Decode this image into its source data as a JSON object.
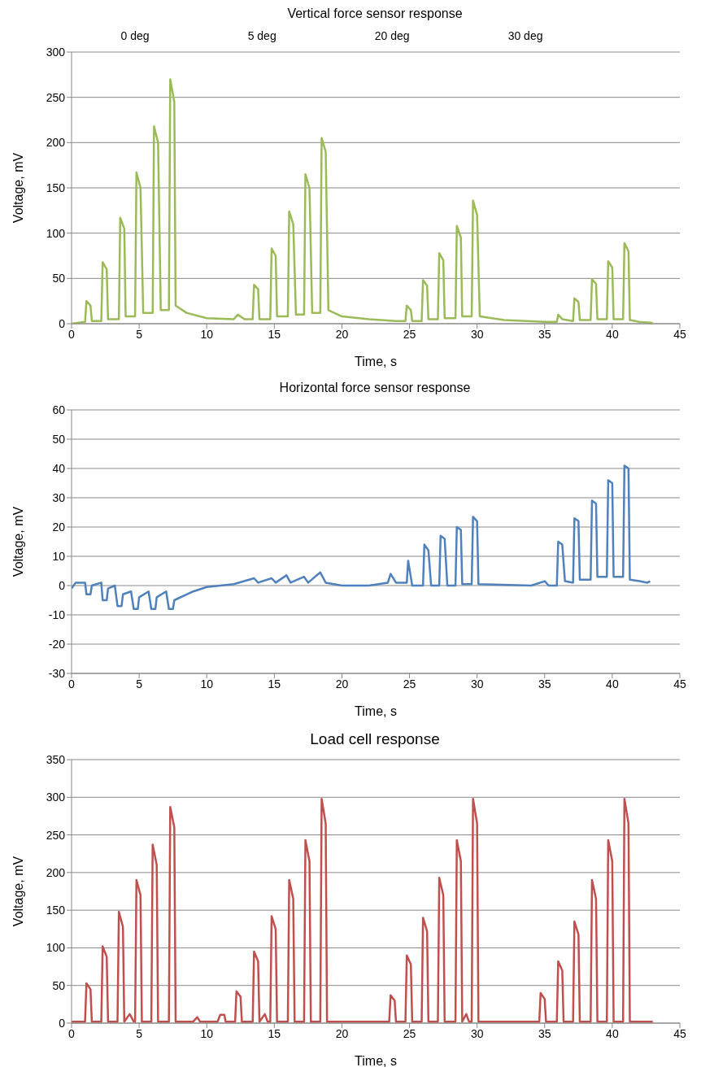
{
  "chart_data": [
    {
      "type": "line",
      "title": "Vertical force sensor response",
      "xlabel": "Time, s",
      "ylabel": "Voltage, mV",
      "xlim": [
        0,
        45
      ],
      "xticks": [
        0,
        5,
        10,
        15,
        20,
        25,
        30,
        35,
        40,
        45
      ],
      "ylim": [
        0,
        300
      ],
      "yticks": [
        0,
        50,
        100,
        150,
        200,
        250,
        300
      ],
      "grid": "y",
      "marker": "none",
      "line_style": "solid",
      "annotations": [
        "0 deg",
        "5 deg",
        "20 deg",
        "30 deg"
      ],
      "series": [
        {
          "color": "#9bbb59",
          "x": [
            0,
            1.0,
            1.1,
            1.4,
            1.5,
            2.2,
            2.3,
            2.6,
            2.7,
            3.5,
            3.6,
            3.9,
            4.0,
            4.7,
            4.8,
            5.1,
            5.3,
            6.0,
            6.1,
            6.4,
            6.6,
            7.2,
            7.3,
            7.6,
            7.7,
            8.5,
            10,
            12,
            12.3,
            12.5,
            12.8,
            13.4,
            13.5,
            13.8,
            13.9,
            14.7,
            14.8,
            15.1,
            15.2,
            16.0,
            16.1,
            16.4,
            16.6,
            17.2,
            17.3,
            17.6,
            17.8,
            18.4,
            18.5,
            18.8,
            19.0,
            20,
            22,
            24,
            24.7,
            24.8,
            25.1,
            25.2,
            25.9,
            26.0,
            26.3,
            26.4,
            27.1,
            27.2,
            27.5,
            27.6,
            28.4,
            28.5,
            28.8,
            28.9,
            29.6,
            29.7,
            30.0,
            30.2,
            32,
            35,
            35.9,
            36.0,
            36.3,
            37.1,
            37.2,
            37.5,
            37.6,
            38.4,
            38.5,
            38.8,
            38.9,
            39.6,
            39.7,
            40.0,
            40.1,
            40.8,
            40.9,
            41.2,
            41.3,
            42,
            43
          ],
          "values": [
            0,
            2,
            25,
            20,
            3,
            3,
            68,
            60,
            5,
            5,
            117,
            105,
            8,
            8,
            167,
            150,
            12,
            12,
            218,
            200,
            15,
            15,
            270,
            245,
            20,
            12,
            6,
            5,
            10,
            8,
            5,
            5,
            43,
            38,
            5,
            5,
            83,
            75,
            8,
            8,
            124,
            110,
            10,
            10,
            165,
            150,
            12,
            12,
            205,
            190,
            15,
            8,
            5,
            3,
            3,
            20,
            15,
            3,
            3,
            48,
            42,
            5,
            5,
            78,
            70,
            6,
            6,
            108,
            95,
            8,
            8,
            136,
            120,
            8,
            4,
            2,
            2,
            10,
            5,
            3,
            28,
            24,
            4,
            4,
            49,
            44,
            5,
            5,
            69,
            62,
            5,
            5,
            89,
            80,
            4,
            2,
            1
          ]
        }
      ]
    },
    {
      "type": "line",
      "title": "Horizontal force sensor response",
      "xlabel": "Time, s",
      "ylabel": "Voltage, mV",
      "xlim": [
        0,
        45
      ],
      "xticks": [
        0,
        5,
        10,
        15,
        20,
        25,
        30,
        35,
        40,
        45
      ],
      "ylim": [
        -30,
        60
      ],
      "yticks": [
        -30,
        -20,
        -10,
        0,
        10,
        20,
        30,
        40,
        50,
        60
      ],
      "grid": "y",
      "marker": "none",
      "line_style": "solid",
      "series": [
        {
          "color": "#4f81bd",
          "x": [
            0,
            0.3,
            1.0,
            1.1,
            1.4,
            1.5,
            2.2,
            2.3,
            2.6,
            2.7,
            3.2,
            3.4,
            3.7,
            3.8,
            4.4,
            4.6,
            4.9,
            5.0,
            5.7,
            5.9,
            6.2,
            6.3,
            7.0,
            7.2,
            7.5,
            7.6,
            9,
            10,
            12,
            13.5,
            13.8,
            14.8,
            15.1,
            15.9,
            16.2,
            17.2,
            17.5,
            18.4,
            18.8,
            20,
            22,
            23.4,
            23.6,
            24.0,
            24.8,
            24.9,
            25.2,
            26.0,
            26.1,
            26.4,
            26.6,
            27.2,
            27.3,
            27.6,
            27.8,
            28.4,
            28.5,
            28.8,
            28.9,
            29.6,
            29.7,
            30.0,
            30.1,
            34,
            35,
            35.3,
            35.9,
            36.0,
            36.3,
            36.5,
            37.1,
            37.2,
            37.5,
            37.6,
            38.4,
            38.5,
            38.8,
            38.9,
            39.6,
            39.7,
            40.0,
            40.1,
            40.8,
            40.9,
            41.2,
            41.3,
            42,
            42.6,
            42.8
          ],
          "values": [
            -1,
            1,
            1,
            -3,
            -3,
            0,
            1,
            -5,
            -5,
            -1,
            0,
            -7,
            -7,
            -3,
            -2,
            -8,
            -8,
            -4,
            -2,
            -8,
            -8,
            -4,
            -2,
            -8,
            -8,
            -5,
            -2,
            -0.5,
            0.5,
            2.5,
            1,
            2.5,
            1,
            3.5,
            1,
            3,
            1,
            4.5,
            1,
            0,
            0,
            1,
            4,
            1,
            1,
            8.5,
            0,
            0,
            14,
            12,
            0,
            0,
            17,
            16,
            0,
            0,
            20,
            19,
            0.5,
            0.5,
            23.5,
            22,
            0.5,
            0,
            1.5,
            0,
            0,
            15,
            14,
            1.5,
            1,
            23,
            22,
            2,
            2,
            29,
            28,
            3,
            3,
            36,
            35,
            3,
            3,
            41,
            40,
            2,
            1.5,
            1,
            1.5
          ]
        }
      ]
    },
    {
      "type": "line",
      "title": "Load cell response",
      "xlabel": "Time, s",
      "ylabel": "Voltage, mV",
      "xlim": [
        0,
        45
      ],
      "xticks": [
        0,
        5,
        10,
        15,
        20,
        25,
        30,
        35,
        40,
        45
      ],
      "ylim": [
        0,
        350
      ],
      "yticks": [
        0,
        50,
        100,
        150,
        200,
        250,
        300,
        350
      ],
      "grid": "y",
      "marker": "none",
      "line_style": "solid",
      "series": [
        {
          "color": "#c0504d",
          "x": [
            0,
            1.0,
            1.1,
            1.4,
            1.5,
            2.2,
            2.3,
            2.6,
            2.7,
            3.4,
            3.5,
            3.8,
            3.9,
            4.3,
            4.6,
            4.7,
            4.8,
            5.1,
            5.2,
            5.9,
            6.0,
            6.3,
            6.4,
            7.2,
            7.3,
            7.6,
            7.7,
            9,
            9.3,
            9.5,
            10.8,
            11,
            11.3,
            11.4,
            12.1,
            12.2,
            12.5,
            12.6,
            13.4,
            13.5,
            13.8,
            13.9,
            14.3,
            14.5,
            14.7,
            14.8,
            15.1,
            15.2,
            16.0,
            16.1,
            16.4,
            16.5,
            17.2,
            17.3,
            17.6,
            17.7,
            18.4,
            18.5,
            18.8,
            18.9,
            21,
            23.5,
            23.6,
            23.9,
            24.0,
            24.7,
            24.8,
            25.1,
            25.2,
            25.9,
            26.0,
            26.3,
            26.4,
            27.1,
            27.2,
            27.5,
            27.6,
            28.4,
            28.5,
            28.8,
            28.9,
            29.2,
            29.4,
            29.6,
            29.7,
            30.0,
            30.1,
            33,
            34.6,
            34.7,
            35.0,
            35.1,
            35.9,
            36.0,
            36.3,
            36.4,
            37.1,
            37.2,
            37.5,
            37.6,
            38.4,
            38.5,
            38.8,
            38.9,
            39.6,
            39.7,
            40.0,
            40.1,
            40.8,
            40.9,
            41.2,
            41.3,
            43
          ],
          "values": [
            2,
            2,
            53,
            45,
            2,
            2,
            102,
            88,
            2,
            2,
            148,
            128,
            2,
            12,
            2,
            2,
            190,
            170,
            2,
            2,
            237,
            210,
            2,
            2,
            287,
            260,
            2,
            2,
            8,
            2,
            2,
            11,
            11,
            2,
            2,
            42,
            35,
            2,
            2,
            95,
            82,
            2,
            12,
            2,
            2,
            142,
            125,
            2,
            2,
            190,
            165,
            2,
            2,
            243,
            215,
            2,
            2,
            298,
            265,
            2,
            2,
            2,
            37,
            30,
            2,
            2,
            90,
            78,
            2,
            2,
            140,
            122,
            2,
            2,
            193,
            170,
            2,
            2,
            243,
            215,
            2,
            12,
            2,
            2,
            298,
            265,
            2,
            2,
            2,
            40,
            32,
            2,
            2,
            82,
            70,
            2,
            2,
            135,
            118,
            2,
            2,
            190,
            165,
            2,
            2,
            243,
            215,
            2,
            2,
            298,
            265,
            2,
            2
          ]
        }
      ]
    }
  ]
}
